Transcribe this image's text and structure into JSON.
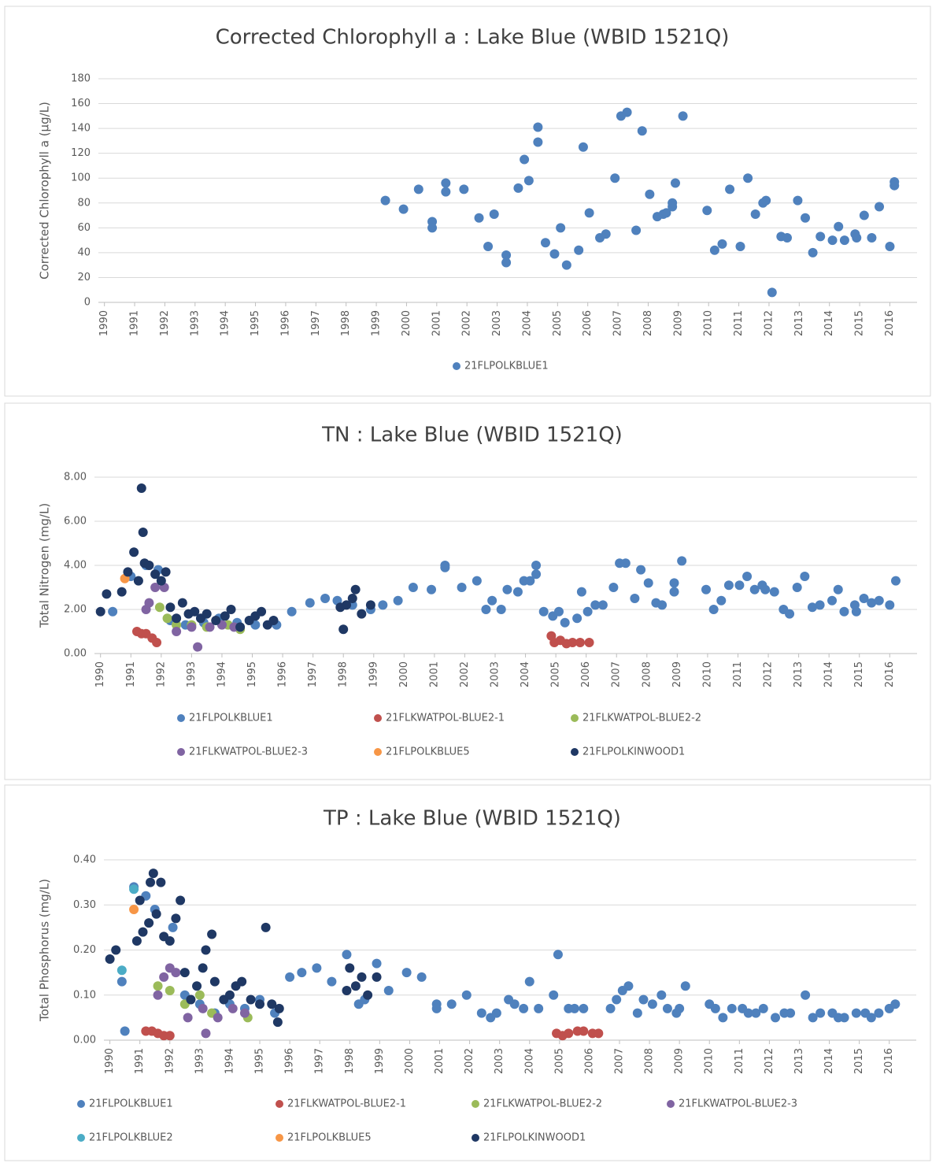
{
  "chart_data": [
    {
      "type": "scatter",
      "title": "Corrected Chlorophyll a : Lake Blue (WBID 1521Q)",
      "y_label": "Corrected Chlorophyll a (µg/L)",
      "xlim": [
        1989.8,
        2016.9
      ],
      "xticks": [
        1990,
        1991,
        1992,
        1993,
        1994,
        1995,
        1996,
        1997,
        1998,
        1999,
        2000,
        2001,
        2002,
        2003,
        2004,
        2005,
        2006,
        2007,
        2008,
        2009,
        2010,
        2011,
        2012,
        2013,
        2014,
        2015,
        2016
      ],
      "ylim": [
        0,
        180
      ],
      "yticks": [
        0,
        20,
        40,
        60,
        80,
        100,
        120,
        140,
        160,
        180
      ],
      "grid": true,
      "legend": "bottom",
      "series": [
        {
          "name": "21FLPOLKBLUE1",
          "color": "#4f81bd",
          "x": [
            1999.3,
            1999.9,
            2000.4,
            2000.85,
            2000.85,
            2001.3,
            2001.3,
            2001.9,
            2002.4,
            2002.7,
            2002.9,
            2003.3,
            2003.3,
            2003.7,
            2003.9,
            2004.05,
            2004.35,
            2004.35,
            2004.6,
            2004.9,
            2005.1,
            2005.3,
            2005.7,
            2005.85,
            2006.05,
            2006.4,
            2006.6,
            2006.9,
            2007.1,
            2007.3,
            2007.6,
            2007.8,
            2008.05,
            2008.3,
            2008.5,
            2008.6,
            2008.8,
            2008.8,
            2008.9,
            2009.15,
            2009.95,
            2010.2,
            2010.45,
            2010.7,
            2011.05,
            2011.3,
            2011.55,
            2011.8,
            2011.9,
            2012.1,
            2012.4,
            2012.6,
            2012.95,
            2013.2,
            2013.45,
            2013.7,
            2014.1,
            2014.3,
            2014.5,
            2014.85,
            2014.9,
            2015.15,
            2015.4,
            2015.65,
            2016.0,
            2016.15,
            2016.15
          ],
          "values": [
            82,
            75,
            91,
            65,
            60,
            96,
            89,
            91,
            68,
            45,
            71,
            38,
            32,
            92,
            115,
            98,
            141,
            129,
            48,
            39,
            60,
            30,
            42,
            125,
            72,
            52,
            55,
            100,
            150,
            153,
            58,
            138,
            87,
            69,
            71,
            72,
            77,
            80,
            96,
            150,
            74,
            42,
            47,
            91,
            45,
            100,
            71,
            80,
            82,
            8,
            53,
            52,
            82,
            68,
            40,
            53,
            50,
            61,
            50,
            55,
            52,
            70,
            52,
            77,
            45,
            97,
            94
          ]
        }
      ]
    },
    {
      "type": "scatter",
      "title": "TN : Lake Blue (WBID 1521Q)",
      "y_label": "Total Nitrogen (mg/L)",
      "xlim": [
        1989.8,
        2016.9
      ],
      "xticks": [
        1990,
        1991,
        1992,
        1993,
        1994,
        1995,
        1996,
        1997,
        1998,
        1999,
        2000,
        2001,
        2002,
        2003,
        2004,
        2005,
        2006,
        2007,
        2008,
        2009,
        2010,
        2011,
        2012,
        2013,
        2014,
        2015,
        2016
      ],
      "ylim": [
        0,
        8
      ],
      "yticks": [
        {
          "value": 0,
          "label": "0.00"
        },
        {
          "value": 2,
          "label": "2.00"
        },
        {
          "value": 4,
          "label": "4.00"
        },
        {
          "value": 6,
          "label": "6.00"
        },
        {
          "value": 8,
          "label": "8.00"
        }
      ],
      "grid": true,
      "legend": "bottom",
      "series": [
        {
          "name": "21FLPOLKBLUE1",
          "color": "#4f81bd",
          "x": [
            1990.4,
            1991.0,
            1991.5,
            1991.9,
            1992.3,
            1992.8,
            1993.4,
            1993.9,
            1994.5,
            1995.1,
            1995.8,
            1996.3,
            1996.9,
            1997.4,
            1997.8,
            1998.3,
            1998.9,
            1999.3,
            1999.8,
            2000.3,
            2000.9,
            2001.35,
            2001.35,
            2001.9,
            2002.4,
            2002.7,
            2002.9,
            2003.2,
            2003.4,
            2003.75,
            2003.95,
            2004.15,
            2004.35,
            2004.35,
            2004.6,
            2004.9,
            2005.1,
            2005.3,
            2005.7,
            2005.85,
            2006.05,
            2006.3,
            2006.55,
            2006.9,
            2007.1,
            2007.3,
            2007.6,
            2007.8,
            2008.05,
            2008.3,
            2008.5,
            2008.9,
            2008.9,
            2009.15,
            2009.95,
            2010.2,
            2010.45,
            2010.7,
            2011.05,
            2011.3,
            2011.55,
            2011.8,
            2011.9,
            2012.2,
            2012.5,
            2012.7,
            2012.95,
            2013.2,
            2013.45,
            2013.7,
            2014.1,
            2014.3,
            2014.5,
            2014.85,
            2014.9,
            2015.15,
            2015.4,
            2015.65,
            2016.0,
            2016.2
          ],
          "values": [
            1.9,
            3.5,
            4.0,
            3.8,
            1.5,
            1.3,
            1.4,
            1.6,
            1.4,
            1.3,
            1.3,
            1.9,
            2.3,
            2.5,
            2.4,
            2.2,
            2.0,
            2.2,
            2.4,
            3.0,
            2.9,
            4.0,
            3.9,
            3.0,
            3.3,
            2.0,
            2.4,
            2.0,
            2.9,
            2.8,
            3.3,
            3.3,
            4.0,
            3.6,
            1.9,
            1.7,
            1.9,
            1.4,
            1.6,
            2.8,
            1.9,
            2.2,
            2.2,
            3.0,
            4.1,
            4.1,
            2.5,
            3.8,
            3.2,
            2.3,
            2.2,
            3.2,
            2.8,
            4.2,
            2.9,
            2.0,
            2.4,
            3.1,
            3.1,
            3.5,
            2.9,
            3.1,
            2.9,
            2.8,
            2.0,
            1.8,
            3.0,
            3.5,
            2.1,
            2.2,
            2.4,
            2.9,
            1.9,
            2.2,
            1.9,
            2.5,
            2.3,
            2.4,
            2.2,
            3.3
          ]
        },
        {
          "name": "21FLKWATPOL-BLUE2-1",
          "color": "#c0504d",
          "x": [
            1991.2,
            1991.35,
            1991.5,
            1991.7,
            1991.85,
            2004.85,
            2004.95,
            2005.15,
            2005.35,
            2005.55,
            2005.8,
            2006.1
          ],
          "values": [
            1.0,
            0.9,
            0.9,
            0.7,
            0.5,
            0.8,
            0.5,
            0.6,
            0.45,
            0.5,
            0.5,
            0.5
          ]
        },
        {
          "name": "21FLKWATPOL-BLUE2-2",
          "color": "#9bbb59",
          "x": [
            1991.95,
            1992.2,
            1992.5,
            1993.0,
            1993.5,
            1994.2,
            1994.6
          ],
          "values": [
            2.1,
            1.6,
            1.3,
            1.3,
            1.2,
            1.3,
            1.1
          ]
        },
        {
          "name": "21FLKWATPOL-BLUE2-3",
          "color": "#8064a2",
          "x": [
            1991.5,
            1991.6,
            1991.8,
            1992.1,
            1992.5,
            1993.0,
            1993.2,
            1993.6,
            1994.0,
            1994.4
          ],
          "values": [
            2.0,
            2.3,
            3.0,
            3.0,
            1.0,
            1.2,
            0.3,
            1.2,
            1.3,
            1.2
          ]
        },
        {
          "name": "21FLPOLKBLUE5",
          "color": "#f79646",
          "x": [
            1990.8
          ],
          "values": [
            3.4
          ]
        },
        {
          "name": "21FLPOLKINWOOD1",
          "color": "#1f3864",
          "x": [
            1990.0,
            1990.2,
            1990.7,
            1990.9,
            1991.1,
            1991.25,
            1991.35,
            1991.4,
            1991.45,
            1991.6,
            1991.8,
            1992.0,
            1992.15,
            1992.3,
            1992.5,
            1992.7,
            1992.9,
            1993.1,
            1993.3,
            1993.5,
            1993.8,
            1994.1,
            1994.3,
            1994.6,
            1994.9,
            1995.1,
            1995.3,
            1995.5,
            1995.7,
            1997.9,
            1998.0,
            1998.1,
            1998.3,
            1998.4,
            1998.6,
            1998.9
          ],
          "values": [
            1.9,
            2.7,
            2.8,
            3.7,
            4.6,
            3.3,
            7.5,
            5.5,
            4.1,
            4.0,
            3.6,
            3.3,
            3.7,
            2.1,
            1.6,
            2.3,
            1.8,
            1.9,
            1.6,
            1.8,
            1.5,
            1.7,
            2.0,
            1.2,
            1.5,
            1.7,
            1.9,
            1.3,
            1.5,
            2.1,
            1.1,
            2.2,
            2.5,
            2.9,
            1.8,
            2.2
          ]
        }
      ]
    },
    {
      "type": "scatter",
      "title": "TP : Lake Blue (WBID 1521Q)",
      "y_label": "Total Phosphorus (mg/L)",
      "xlim": [
        1989.8,
        2016.9
      ],
      "xticks": [
        1990,
        1991,
        1992,
        1993,
        1994,
        1995,
        1996,
        1997,
        1998,
        1999,
        2000,
        2001,
        2002,
        2003,
        2004,
        2005,
        2006,
        2007,
        2008,
        2009,
        2010,
        2011,
        2012,
        2013,
        2014,
        2015,
        2016
      ],
      "ylim": [
        0,
        0.4
      ],
      "yticks": [
        {
          "value": 0,
          "label": "0.00"
        },
        {
          "value": 0.1,
          "label": "0.10"
        },
        {
          "value": 0.2,
          "label": "0.20"
        },
        {
          "value": 0.3,
          "label": "0.30"
        },
        {
          "value": 0.4,
          "label": "0.40"
        }
      ],
      "grid": true,
      "legend": "bottom",
      "series": [
        {
          "name": "21FLPOLKBLUE1",
          "color": "#4f81bd",
          "x": [
            1990.4,
            1990.5,
            1990.8,
            1991.2,
            1991.5,
            1992.1,
            1992.5,
            1993.0,
            1993.5,
            1994.0,
            1994.5,
            1995.0,
            1995.5,
            1996.0,
            1996.4,
            1996.9,
            1997.4,
            1997.9,
            1998.3,
            1998.5,
            1998.9,
            1999.3,
            1999.9,
            2000.4,
            2000.9,
            2000.9,
            2001.4,
            2001.9,
            2002.4,
            2002.7,
            2002.9,
            2003.3,
            2003.5,
            2003.8,
            2004.0,
            2004.3,
            2004.8,
            2004.95,
            2005.3,
            2005.5,
            2005.8,
            2006.7,
            2006.9,
            2007.1,
            2007.3,
            2007.6,
            2007.8,
            2008.1,
            2008.4,
            2008.6,
            2008.9,
            2009.0,
            2009.2,
            2010.0,
            2010.2,
            2010.45,
            2010.75,
            2011.1,
            2011.3,
            2011.55,
            2011.8,
            2012.2,
            2012.5,
            2012.7,
            2013.2,
            2013.45,
            2013.7,
            2014.1,
            2014.3,
            2014.5,
            2014.9,
            2015.2,
            2015.4,
            2015.65,
            2016.0,
            2016.2
          ],
          "values": [
            0.13,
            0.02,
            0.34,
            0.32,
            0.29,
            0.25,
            0.1,
            0.08,
            0.06,
            0.08,
            0.07,
            0.09,
            0.06,
            0.14,
            0.15,
            0.16,
            0.13,
            0.19,
            0.08,
            0.09,
            0.17,
            0.11,
            0.15,
            0.14,
            0.08,
            0.07,
            0.08,
            0.1,
            0.06,
            0.05,
            0.06,
            0.09,
            0.08,
            0.07,
            0.13,
            0.07,
            0.1,
            0.19,
            0.07,
            0.07,
            0.07,
            0.07,
            0.09,
            0.11,
            0.12,
            0.06,
            0.09,
            0.08,
            0.1,
            0.07,
            0.06,
            0.07,
            0.12,
            0.08,
            0.07,
            0.05,
            0.07,
            0.07,
            0.06,
            0.06,
            0.07,
            0.05,
            0.06,
            0.06,
            0.1,
            0.05,
            0.06,
            0.06,
            0.05,
            0.05,
            0.06,
            0.06,
            0.05,
            0.06,
            0.07,
            0.08
          ]
        },
        {
          "name": "21FLKWATPOL-BLUE2-1",
          "color": "#c0504d",
          "x": [
            1991.2,
            1991.4,
            1991.6,
            1991.8,
            1992.0,
            2004.9,
            2005.1,
            2005.3,
            2005.6,
            2005.8,
            2006.1,
            2006.3
          ],
          "values": [
            0.02,
            0.02,
            0.015,
            0.01,
            0.01,
            0.015,
            0.01,
            0.015,
            0.02,
            0.02,
            0.015,
            0.015
          ]
        },
        {
          "name": "21FLKWATPOL-BLUE2-2",
          "color": "#9bbb59",
          "x": [
            1991.6,
            1992.0,
            1992.5,
            1993.0,
            1993.4,
            1994.6
          ],
          "values": [
            0.12,
            0.11,
            0.08,
            0.1,
            0.06,
            0.05
          ]
        },
        {
          "name": "21FLKWATPOL-BLUE2-3",
          "color": "#8064a2",
          "x": [
            1991.6,
            1991.8,
            1992.0,
            1992.2,
            1992.6,
            1993.1,
            1993.2,
            1993.6,
            1994.1,
            1994.5
          ],
          "values": [
            0.1,
            0.14,
            0.16,
            0.15,
            0.05,
            0.07,
            0.015,
            0.05,
            0.07,
            0.06
          ]
        },
        {
          "name": "21FLPOLKBLUE2",
          "color": "#4bacc6",
          "x": [
            1990.4,
            1990.8
          ],
          "values": [
            0.155,
            0.335
          ]
        },
        {
          "name": "21FLPOLKBLUE5",
          "color": "#f79646",
          "x": [
            1990.8
          ],
          "values": [
            0.29
          ]
        },
        {
          "name": "21FLPOLKINWOOD1",
          "color": "#1f3864",
          "x": [
            1990.0,
            1990.2,
            1990.9,
            1991.0,
            1991.1,
            1991.3,
            1991.35,
            1991.45,
            1991.55,
            1991.7,
            1991.8,
            1992.0,
            1992.2,
            1992.35,
            1992.5,
            1992.7,
            1992.9,
            1993.1,
            1993.2,
            1993.4,
            1993.5,
            1993.8,
            1994.0,
            1994.2,
            1994.4,
            1994.7,
            1995.0,
            1995.2,
            1995.4,
            1995.6,
            1995.65,
            1997.9,
            1998.0,
            1998.2,
            1998.4,
            1998.6,
            1998.9
          ],
          "values": [
            0.18,
            0.2,
            0.22,
            0.31,
            0.24,
            0.26,
            0.35,
            0.37,
            0.28,
            0.35,
            0.23,
            0.22,
            0.27,
            0.31,
            0.15,
            0.09,
            0.12,
            0.16,
            0.2,
            0.235,
            0.13,
            0.09,
            0.1,
            0.12,
            0.13,
            0.09,
            0.08,
            0.25,
            0.08,
            0.04,
            0.07,
            0.11,
            0.16,
            0.12,
            0.14,
            0.1,
            0.14
          ]
        }
      ]
    }
  ]
}
